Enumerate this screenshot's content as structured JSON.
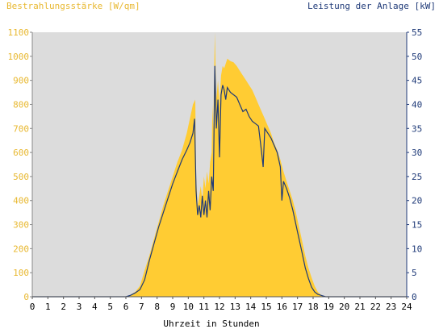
{
  "chart_data": {
    "type": "area",
    "title_left": "Bestrahlungsstärke [W/qm]",
    "title_right": "Leistung der Anlage [kW]",
    "xlabel": "Uhrzeit in Stunden",
    "xlim": [
      0,
      24
    ],
    "x_ticks": [
      0,
      1,
      2,
      3,
      4,
      5,
      6,
      7,
      8,
      9,
      10,
      11,
      12,
      13,
      14,
      15,
      16,
      17,
      18,
      19,
      20,
      21,
      22,
      23,
      24
    ],
    "ylim_left": [
      0,
      1100
    ],
    "y_ticks_left": [
      0,
      100,
      200,
      300,
      400,
      500,
      600,
      700,
      800,
      900,
      1000,
      1100
    ],
    "ylim_right": [
      0,
      55
    ],
    "y_ticks_right": [
      0,
      5,
      10,
      15,
      20,
      25,
      30,
      35,
      40,
      45,
      50,
      55
    ],
    "colors": {
      "irradiance_fill": "#FFCC33",
      "power_line": "#1F3A78",
      "plot_background": "#DCDCDC",
      "left_axis_text": "#E8B830",
      "right_axis_text": "#1F3A78"
    },
    "series": [
      {
        "axis": "left",
        "style": "area",
        "points": [
          [
            0,
            0
          ],
          [
            6.0,
            0
          ],
          [
            6.3,
            8
          ],
          [
            6.6,
            20
          ],
          [
            6.9,
            45
          ],
          [
            7.2,
            110
          ],
          [
            7.5,
            170
          ],
          [
            7.8,
            240
          ],
          [
            8.1,
            310
          ],
          [
            8.4,
            380
          ],
          [
            8.7,
            440
          ],
          [
            9.0,
            500
          ],
          [
            9.3,
            560
          ],
          [
            9.6,
            610
          ],
          [
            9.9,
            680
          ],
          [
            10.1,
            740
          ],
          [
            10.3,
            800
          ],
          [
            10.45,
            820
          ],
          [
            10.5,
            500
          ],
          [
            10.6,
            380
          ],
          [
            10.7,
            420
          ],
          [
            10.8,
            460
          ],
          [
            10.9,
            400
          ],
          [
            11.0,
            500
          ],
          [
            11.1,
            450
          ],
          [
            11.2,
            520
          ],
          [
            11.3,
            470
          ],
          [
            11.4,
            560
          ],
          [
            11.5,
            600
          ],
          [
            11.55,
            800
          ],
          [
            11.6,
            700
          ],
          [
            11.7,
            1100
          ],
          [
            11.75,
            950
          ],
          [
            11.8,
            820
          ],
          [
            11.9,
            900
          ],
          [
            12.0,
            800
          ],
          [
            12.1,
            920
          ],
          [
            12.2,
            960
          ],
          [
            12.3,
            950
          ],
          [
            12.5,
            990
          ],
          [
            12.7,
            980
          ],
          [
            12.9,
            975
          ],
          [
            13.1,
            960
          ],
          [
            13.3,
            940
          ],
          [
            13.5,
            920
          ],
          [
            13.7,
            900
          ],
          [
            13.9,
            880
          ],
          [
            14.1,
            860
          ],
          [
            14.3,
            830
          ],
          [
            14.5,
            800
          ],
          [
            14.7,
            770
          ],
          [
            14.9,
            740
          ],
          [
            15.1,
            710
          ],
          [
            15.3,
            680
          ],
          [
            15.5,
            640
          ],
          [
            15.7,
            610
          ],
          [
            15.9,
            570
          ],
          [
            16.1,
            520
          ],
          [
            16.3,
            480
          ],
          [
            16.5,
            440
          ],
          [
            16.7,
            400
          ],
          [
            16.9,
            350
          ],
          [
            17.1,
            290
          ],
          [
            17.3,
            230
          ],
          [
            17.5,
            170
          ],
          [
            17.7,
            120
          ],
          [
            17.9,
            80
          ],
          [
            18.1,
            45
          ],
          [
            18.3,
            20
          ],
          [
            18.5,
            8
          ],
          [
            18.8,
            0
          ],
          [
            24,
            0
          ]
        ]
      },
      {
        "axis": "right",
        "style": "line",
        "points": [
          [
            0,
            0
          ],
          [
            6.0,
            0
          ],
          [
            6.3,
            0.3
          ],
          [
            6.6,
            0.8
          ],
          [
            6.9,
            1.5
          ],
          [
            7.2,
            3.5
          ],
          [
            7.5,
            7.5
          ],
          [
            7.8,
            11
          ],
          [
            8.1,
            14.5
          ],
          [
            8.4,
            17.5
          ],
          [
            8.7,
            20.5
          ],
          [
            9.0,
            23.5
          ],
          [
            9.3,
            26
          ],
          [
            9.6,
            28.5
          ],
          [
            9.9,
            30.5
          ],
          [
            10.1,
            32
          ],
          [
            10.3,
            34
          ],
          [
            10.4,
            37
          ],
          [
            10.5,
            22
          ],
          [
            10.6,
            17
          ],
          [
            10.7,
            19
          ],
          [
            10.8,
            16.5
          ],
          [
            10.9,
            21
          ],
          [
            11.0,
            17
          ],
          [
            11.1,
            20
          ],
          [
            11.2,
            16.5
          ],
          [
            11.3,
            22
          ],
          [
            11.4,
            18
          ],
          [
            11.5,
            25
          ],
          [
            11.6,
            22
          ],
          [
            11.7,
            48
          ],
          [
            11.8,
            35
          ],
          [
            11.9,
            41
          ],
          [
            12.0,
            29
          ],
          [
            12.1,
            42
          ],
          [
            12.2,
            44
          ],
          [
            12.3,
            43
          ],
          [
            12.4,
            41
          ],
          [
            12.5,
            43.5
          ],
          [
            12.7,
            42.5
          ],
          [
            12.9,
            42
          ],
          [
            13.1,
            41.5
          ],
          [
            13.3,
            40
          ],
          [
            13.5,
            38.5
          ],
          [
            13.7,
            39
          ],
          [
            13.9,
            37.5
          ],
          [
            14.1,
            36.5
          ],
          [
            14.3,
            36
          ],
          [
            14.5,
            35.5
          ],
          [
            14.7,
            30
          ],
          [
            14.8,
            27
          ],
          [
            14.9,
            35
          ],
          [
            15.1,
            34
          ],
          [
            15.3,
            33
          ],
          [
            15.5,
            31.5
          ],
          [
            15.7,
            30
          ],
          [
            15.9,
            27
          ],
          [
            16.0,
            20
          ],
          [
            16.1,
            24
          ],
          [
            16.3,
            22.5
          ],
          [
            16.5,
            20.5
          ],
          [
            16.7,
            18
          ],
          [
            16.9,
            15
          ],
          [
            17.1,
            12
          ],
          [
            17.3,
            9
          ],
          [
            17.5,
            6
          ],
          [
            17.7,
            3.8
          ],
          [
            17.9,
            2
          ],
          [
            18.1,
            1
          ],
          [
            18.3,
            0.5
          ],
          [
            18.6,
            0.2
          ],
          [
            18.8,
            0
          ],
          [
            24,
            0
          ]
        ]
      }
    ]
  }
}
